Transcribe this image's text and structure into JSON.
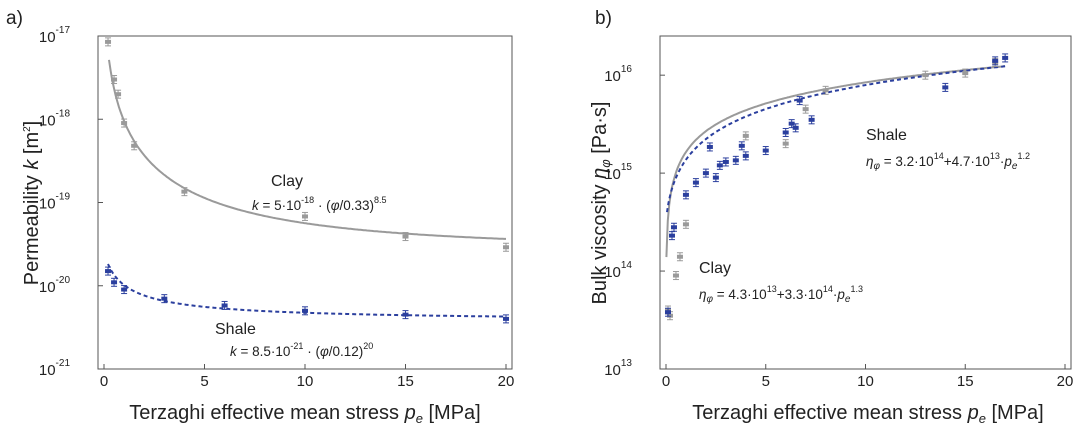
{
  "panels": [
    {
      "label": "a)",
      "ylabel": "Permeability",
      "ylabel_symbol": "k",
      "ylabel_unit": "[m",
      "ylabel_unit_exp": "2",
      "ylabel_unit_end": "]",
      "xlabel": "Terzaghi effective mean stress",
      "xlabel_symbol": "p",
      "xlabel_sub": "e",
      "xlabel_unit": "[MPa]",
      "x_ticks": [
        "0",
        "5",
        "10",
        "15",
        "20"
      ],
      "y_ticks": [
        {
          "base": "10",
          "exp": "-21"
        },
        {
          "base": "10",
          "exp": "-20"
        },
        {
          "base": "10",
          "exp": "-19"
        },
        {
          "base": "10",
          "exp": "-18"
        },
        {
          "base": "10",
          "exp": "-17"
        }
      ],
      "annotations": {
        "clay_name": "Clay",
        "clay_eq_k": "k",
        "clay_eq_a": " = 5·10",
        "clay_eq_a_exp": "-18",
        "clay_eq_b": "· (",
        "clay_eq_phi": "φ",
        "clay_eq_c": "/0.33)",
        "clay_eq_c_exp": "8.5",
        "shale_name": "Shale",
        "shale_eq_k": "k",
        "shale_eq_a": " = 8.5·10",
        "shale_eq_a_exp": "-21",
        "shale_eq_b": "· (",
        "shale_eq_phi": "φ",
        "shale_eq_c": "/0.12)",
        "shale_eq_c_exp": "20"
      }
    },
    {
      "label": "b)",
      "ylabel": "Bulk viscosity",
      "ylabel_symbol": "η",
      "ylabel_sub": "φ",
      "ylabel_unit": "[Pa·s]",
      "xlabel": "Terzaghi effective mean stress",
      "xlabel_symbol": "p",
      "xlabel_sub": "e",
      "xlabel_unit": "[MPa]",
      "x_ticks": [
        "0",
        "5",
        "10",
        "15",
        "20"
      ],
      "y_ticks": [
        {
          "base": "10",
          "exp": "13"
        },
        {
          "base": "10",
          "exp": "14"
        },
        {
          "base": "10",
          "exp": "15"
        },
        {
          "base": "10",
          "exp": "16"
        }
      ],
      "annotations": {
        "shale_name": "Shale",
        "shale_eq_eta": "η",
        "shale_eq_sub": "φ",
        "shale_eq_a": " = 3.2·10",
        "shale_eq_a_exp": "14",
        "shale_eq_b": "+4.7·10",
        "shale_eq_b_exp": "13",
        "shale_eq_c": "·",
        "shale_eq_p": "p",
        "shale_eq_p_sub": "e",
        "shale_eq_p_exp": "1.2",
        "clay_name": "Clay",
        "clay_eq_eta": "η",
        "clay_eq_sub": "φ",
        "clay_eq_a": " = 4.3·10",
        "clay_eq_a_exp": "13",
        "clay_eq_b": "+3.3·10",
        "clay_eq_b_exp": "14",
        "clay_eq_c": "·",
        "clay_eq_p": "p",
        "clay_eq_p_sub": "e",
        "clay_eq_p_exp": "1.3"
      }
    }
  ],
  "colors": {
    "clay": "#9a9a9a",
    "shale": "#2b3f9e",
    "axis": "#555555"
  },
  "chart_data": [
    {
      "type": "scatter",
      "xlim": [
        0,
        20
      ],
      "ylim_log10": [
        -21,
        -17
      ],
      "log_y": true,
      "series": [
        {
          "name": "Clay",
          "color": "#9a9a9a",
          "points": [
            [
              0.2,
              8.5e-18
            ],
            [
              0.5,
              3e-18
            ],
            [
              0.7,
              2e-18
            ],
            [
              1.0,
              9e-19
            ],
            [
              1.5,
              4.8e-19
            ],
            [
              4.0,
              1.35e-19
            ],
            [
              10.0,
              6.8e-20
            ],
            [
              15.0,
              3.9e-20
            ],
            [
              20.0,
              2.9e-20
            ]
          ],
          "fit": "k = 5e-18 · (φ/0.33)^8.5"
        },
        {
          "name": "Shale",
          "color": "#2b3f9e",
          "points": [
            [
              0.2,
              1.5e-20
            ],
            [
              0.5,
              1.1e-20
            ],
            [
              1.0,
              9e-21
            ],
            [
              3.0,
              7e-21
            ],
            [
              6.0,
              5.8e-21
            ],
            [
              10.0,
              5e-21
            ],
            [
              15.0,
              4.5e-21
            ],
            [
              20.0,
              4e-21
            ]
          ],
          "fit": "k = 8.5e-21 · (φ/0.12)^20"
        }
      ]
    },
    {
      "type": "scatter",
      "xlim": [
        0,
        20
      ],
      "ylim_log10": [
        13,
        16.4
      ],
      "log_y": true,
      "series": [
        {
          "name": "Clay",
          "color": "#9a9a9a",
          "points": [
            [
              0.1,
              40000000000000.0
            ],
            [
              0.2,
              35000000000000.0
            ],
            [
              0.5,
              90000000000000.0
            ],
            [
              0.7,
              140000000000000.0
            ],
            [
              1.0,
              300000000000000.0
            ],
            [
              4.0,
              2400000000000000.0
            ],
            [
              6.0,
              2000000000000000.0
            ],
            [
              7.0,
              4500000000000000.0
            ],
            [
              8.0,
              7000000000000000.0
            ],
            [
              13.0,
              1e+16
            ],
            [
              15.0,
              1.05e+16
            ],
            [
              16.5,
              1.35e+16
            ]
          ],
          "fit": "ηφ = 4.3e13 + 3.3e14 · pe^1.3"
        },
        {
          "name": "Shale",
          "color": "#2b3f9e",
          "points": [
            [
              0.1,
              38000000000000.0
            ],
            [
              0.3,
              230000000000000.0
            ],
            [
              0.4,
              280000000000000.0
            ],
            [
              1.0,
              600000000000000.0
            ],
            [
              1.5,
              800000000000000.0
            ],
            [
              2.0,
              1000000000000000.0
            ],
            [
              2.2,
              1850000000000000.0
            ],
            [
              2.5,
              900000000000000.0
            ],
            [
              2.7,
              1200000000000000.0
            ],
            [
              3.0,
              1300000000000000.0
            ],
            [
              3.5,
              1350000000000000.0
            ],
            [
              3.8,
              1900000000000000.0
            ],
            [
              4.0,
              1500000000000000.0
            ],
            [
              5.0,
              1700000000000000.0
            ],
            [
              6.0,
              2600000000000000.0
            ],
            [
              6.3,
              3200000000000000.0
            ],
            [
              6.5,
              2900000000000000.0
            ],
            [
              6.7,
              5500000000000000.0
            ],
            [
              7.3,
              3500000000000000.0
            ],
            [
              14.0,
              7500000000000000.0
            ],
            [
              16.5,
              1.4e+16
            ],
            [
              17.0,
              1.5e+16
            ]
          ],
          "fit": "ηφ = 3.2e14 + 4.7e13 · pe^1.2"
        }
      ]
    }
  ]
}
